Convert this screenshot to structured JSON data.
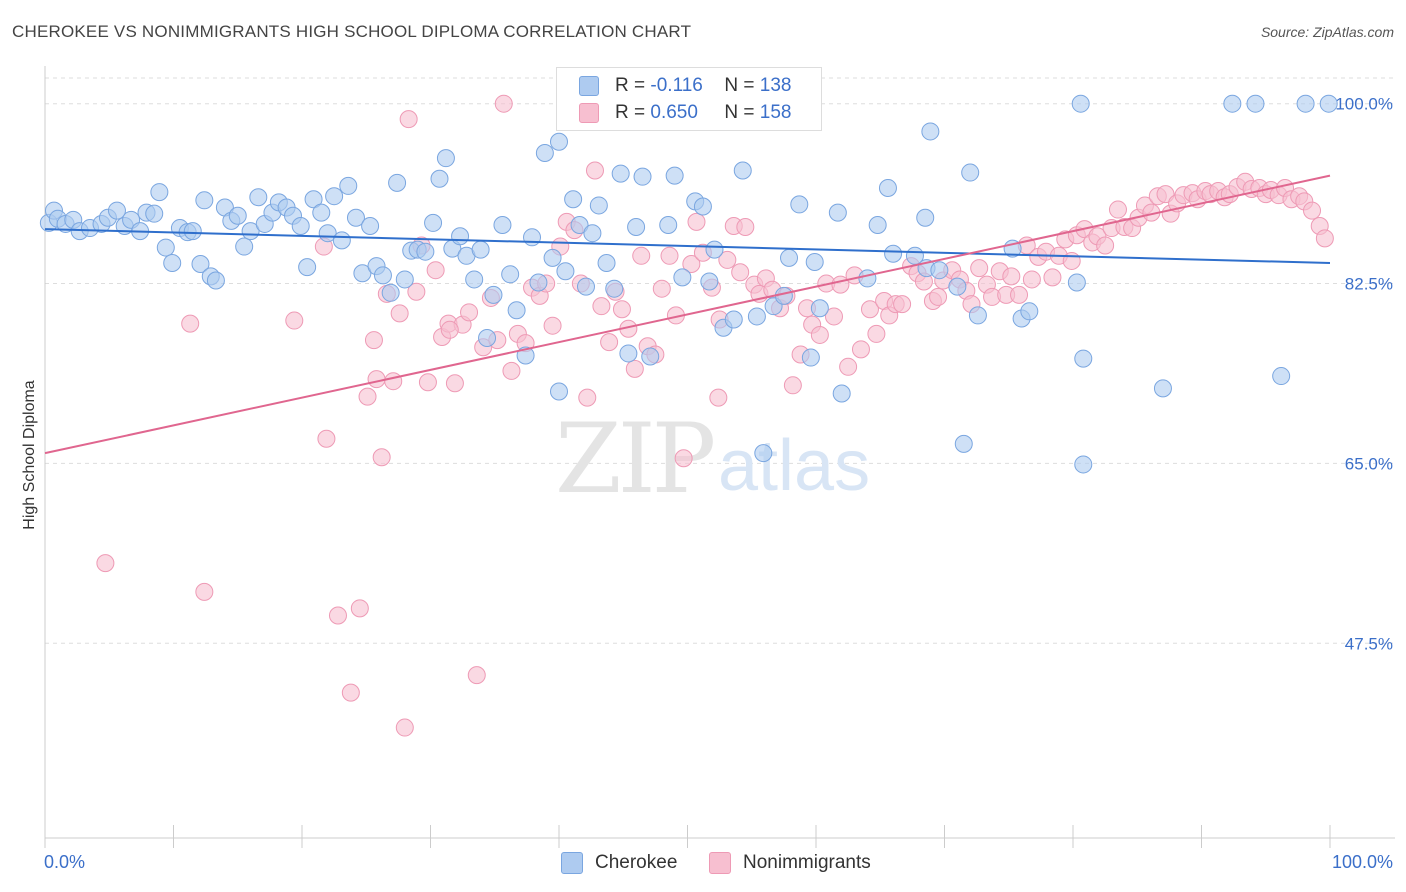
{
  "title": "CHEROKEE VS NONIMMIGRANTS HIGH SCHOOL DIPLOMA CORRELATION CHART",
  "source": "Source: ZipAtlas.com",
  "watermark": {
    "zip": "ZIP",
    "atlas": "atlas"
  },
  "legend": {
    "r_label": "R =",
    "n_label": "N =",
    "rows": [
      {
        "r": "-0.116",
        "n": "138"
      },
      {
        "r": "0.650",
        "n": "158"
      }
    ]
  },
  "colors": {
    "cherokee_fill": "#aecbf0",
    "cherokee_stroke": "#7aa6e0",
    "cherokee_line": "#2f6fcc",
    "nonimm_fill": "#f7bfd0",
    "nonimm_stroke": "#ee9ab5",
    "nonimm_line": "#e0668f",
    "tick_text": "#3b6fc9",
    "grid": "#dddddd"
  },
  "chart_data": {
    "type": "scatter",
    "xlabel": "",
    "ylabel": "High School Diploma",
    "x_tick_labels": [
      "0.0%",
      "100.0%"
    ],
    "y_tick_labels": [
      "100.0%",
      "82.5%",
      "65.0%",
      "47.5%"
    ],
    "y_ticks": [
      100.0,
      82.5,
      65.0,
      47.5
    ],
    "xlim": [
      0,
      100
    ],
    "ylim": [
      30.5,
      102.5
    ],
    "grid": true,
    "legend_position": "top-center",
    "series": [
      {
        "name": "Cherokee",
        "trend": {
          "x0": 0,
          "y0": 87.8,
          "x1": 100,
          "y1": 84.5
        },
        "points": [
          [
            0.3,
            88.4
          ],
          [
            0.7,
            89.6
          ],
          [
            1,
            88.8
          ],
          [
            1.6,
            88.3
          ],
          [
            2.2,
            88.7
          ],
          [
            2.7,
            87.6
          ],
          [
            3.5,
            87.9
          ],
          [
            4.4,
            88.3
          ],
          [
            4.9,
            88.9
          ],
          [
            5.6,
            89.6
          ],
          [
            6.2,
            88.1
          ],
          [
            6.7,
            88.7
          ],
          [
            7.4,
            87.6
          ],
          [
            7.9,
            89.4
          ],
          [
            8.5,
            89.3
          ],
          [
            8.9,
            91.4
          ],
          [
            9.4,
            86.0
          ],
          [
            9.9,
            84.5
          ],
          [
            10.5,
            87.9
          ],
          [
            11.1,
            87.5
          ],
          [
            11.5,
            87.6
          ],
          [
            12.1,
            84.4
          ],
          [
            12.4,
            90.6
          ],
          [
            12.9,
            83.2
          ],
          [
            13.3,
            82.8
          ],
          [
            14,
            89.9
          ],
          [
            14.5,
            88.6
          ],
          [
            15,
            89.1
          ],
          [
            15.5,
            86.1
          ],
          [
            16,
            87.6
          ],
          [
            16.6,
            90.9
          ],
          [
            17.1,
            88.3
          ],
          [
            17.7,
            89.4
          ],
          [
            18.2,
            90.4
          ],
          [
            18.8,
            89.9
          ],
          [
            19.3,
            89.1
          ],
          [
            19.9,
            88.1
          ],
          [
            20.4,
            84.1
          ],
          [
            20.9,
            90.7
          ],
          [
            21.5,
            89.4
          ],
          [
            22,
            87.4
          ],
          [
            22.5,
            91.0
          ],
          [
            23.1,
            86.7
          ],
          [
            23.6,
            92.0
          ],
          [
            24.2,
            88.9
          ],
          [
            24.7,
            83.5
          ],
          [
            25.3,
            88.1
          ],
          [
            25.8,
            84.2
          ],
          [
            26.3,
            83.3
          ],
          [
            26.9,
            81.6
          ],
          [
            27.4,
            92.3
          ],
          [
            28,
            82.9
          ],
          [
            28.5,
            85.7
          ],
          [
            29,
            85.8
          ],
          [
            29.6,
            85.6
          ],
          [
            30.2,
            88.4
          ],
          [
            30.7,
            92.7
          ],
          [
            31.2,
            94.7
          ],
          [
            31.7,
            85.9
          ],
          [
            32.3,
            87.1
          ],
          [
            32.8,
            85.2
          ],
          [
            33.4,
            82.9
          ],
          [
            33.9,
            85.8
          ],
          [
            34.4,
            77.2
          ],
          [
            34.9,
            81.4
          ],
          [
            35.6,
            88.2
          ],
          [
            36.2,
            83.4
          ],
          [
            36.7,
            79.9
          ],
          [
            37.4,
            75.5
          ],
          [
            37.9,
            87.0
          ],
          [
            38.4,
            82.6
          ],
          [
            38.9,
            95.2
          ],
          [
            39.5,
            85.0
          ],
          [
            40.0,
            96.3
          ],
          [
            40.5,
            83.7
          ],
          [
            41.1,
            90.7
          ],
          [
            41.6,
            88.2
          ],
          [
            42.1,
            82.2
          ],
          [
            42.6,
            87.4
          ],
          [
            43.1,
            90.1
          ],
          [
            43.7,
            84.5
          ],
          [
            44.3,
            82.0
          ],
          [
            44.8,
            93.2
          ],
          [
            45.4,
            75.7
          ],
          [
            46.0,
            88.0
          ],
          [
            46.5,
            92.9
          ],
          [
            47.1,
            75.4
          ],
          [
            47.7,
            100.0
          ],
          [
            48.5,
            88.2
          ],
          [
            49.0,
            93.0
          ],
          [
            49.6,
            83.1
          ],
          [
            50.6,
            90.5
          ],
          [
            51.2,
            90.0
          ],
          [
            51.7,
            82.7
          ],
          [
            52.4,
            99.8
          ],
          [
            53.4,
            100.0
          ],
          [
            52.1,
            85.8
          ],
          [
            52.8,
            78.2
          ],
          [
            53.6,
            79.0
          ],
          [
            54.3,
            93.5
          ],
          [
            54.8,
            100.0
          ],
          [
            55.4,
            79.3
          ],
          [
            55.9,
            66.0
          ],
          [
            56.7,
            80.3
          ],
          [
            57.5,
            81.3
          ],
          [
            57.9,
            85.0
          ],
          [
            58.7,
            90.2
          ],
          [
            59.6,
            75.3
          ],
          [
            59.9,
            84.6
          ],
          [
            60.3,
            80.1
          ],
          [
            61.7,
            89.4
          ],
          [
            62.0,
            71.8
          ],
          [
            64.0,
            83.0
          ],
          [
            64.8,
            88.2
          ],
          [
            65.6,
            91.8
          ],
          [
            66.0,
            85.4
          ],
          [
            67.7,
            85.2
          ],
          [
            68.5,
            88.9
          ],
          [
            68.6,
            84.0
          ],
          [
            68.9,
            97.3
          ],
          [
            69.6,
            83.8
          ],
          [
            71.0,
            82.2
          ],
          [
            71.5,
            66.9
          ],
          [
            72.0,
            93.3
          ],
          [
            72.6,
            79.4
          ],
          [
            75.3,
            85.9
          ],
          [
            76.0,
            79.1
          ],
          [
            76.6,
            79.8
          ],
          [
            80.3,
            82.6
          ],
          [
            80.8,
            75.2
          ],
          [
            80.8,
            64.9
          ],
          [
            80.6,
            100.0
          ],
          [
            87.0,
            72.3
          ],
          [
            92.4,
            100.0
          ],
          [
            94.2,
            100.0
          ],
          [
            96.2,
            73.5
          ],
          [
            98.1,
            100.0
          ],
          [
            99.9,
            100.0
          ],
          [
            40.0,
            72.0
          ]
        ]
      },
      {
        "name": "Nonimmigrants",
        "trend": {
          "x0": 0,
          "y0": 66.0,
          "x1": 100,
          "y1": 93.0
        },
        "points": [
          [
            4.7,
            55.3
          ],
          [
            11.3,
            78.6
          ],
          [
            12.4,
            52.5
          ],
          [
            19.4,
            78.9
          ],
          [
            21.7,
            86.1
          ],
          [
            21.9,
            67.4
          ],
          [
            22.8,
            50.2
          ],
          [
            23.8,
            42.7
          ],
          [
            24.5,
            50.9
          ],
          [
            25.1,
            71.5
          ],
          [
            25.6,
            77.0
          ],
          [
            25.8,
            73.2
          ],
          [
            26.2,
            65.6
          ],
          [
            26.6,
            81.5
          ],
          [
            27.1,
            73.0
          ],
          [
            27.6,
            79.6
          ],
          [
            28.0,
            39.3
          ],
          [
            28.3,
            98.5
          ],
          [
            28.9,
            81.7
          ],
          [
            29.3,
            86.2
          ],
          [
            29.8,
            72.9
          ],
          [
            30.4,
            83.8
          ],
          [
            30.9,
            77.3
          ],
          [
            31.4,
            78.6
          ],
          [
            31.9,
            72.8
          ],
          [
            32.5,
            78.5
          ],
          [
            33.0,
            79.7
          ],
          [
            33.6,
            44.4
          ],
          [
            34.1,
            76.3
          ],
          [
            34.7,
            81.1
          ],
          [
            35.2,
            77.0
          ],
          [
            35.7,
            100.0
          ],
          [
            36.3,
            74.0
          ],
          [
            36.8,
            77.6
          ],
          [
            37.4,
            76.7
          ],
          [
            37.9,
            82.1
          ],
          [
            38.5,
            81.3
          ],
          [
            39.0,
            82.5
          ],
          [
            39.5,
            78.4
          ],
          [
            40.1,
            86.1
          ],
          [
            40.6,
            88.5
          ],
          [
            41.2,
            87.7
          ],
          [
            41.7,
            82.5
          ],
          [
            42.2,
            71.4
          ],
          [
            42.8,
            93.5
          ],
          [
            43.3,
            80.3
          ],
          [
            43.9,
            76.8
          ],
          [
            44.4,
            81.7
          ],
          [
            44.9,
            80.0
          ],
          [
            45.4,
            78.1
          ],
          [
            45.9,
            74.2
          ],
          [
            46.4,
            85.2
          ],
          [
            46.9,
            76.4
          ],
          [
            47.5,
            75.6
          ],
          [
            48.0,
            82.0
          ],
          [
            48.6,
            85.2
          ],
          [
            49.1,
            79.4
          ],
          [
            49.7,
            65.5
          ],
          [
            50.3,
            84.4
          ],
          [
            50.7,
            88.5
          ],
          [
            51.2,
            85.5
          ],
          [
            51.9,
            82.1
          ],
          [
            52.4,
            71.4
          ],
          [
            53.1,
            84.8
          ],
          [
            53.6,
            88.1
          ],
          [
            54.1,
            83.6
          ],
          [
            54.5,
            88.0
          ],
          [
            55.2,
            82.4
          ],
          [
            55.6,
            81.5
          ],
          [
            56.1,
            83.0
          ],
          [
            56.6,
            81.9
          ],
          [
            57.2,
            80.1
          ],
          [
            57.7,
            81.3
          ],
          [
            58.2,
            72.6
          ],
          [
            58.8,
            75.6
          ],
          [
            59.3,
            80.1
          ],
          [
            59.7,
            78.5
          ],
          [
            60.3,
            77.5
          ],
          [
            60.8,
            82.5
          ],
          [
            61.4,
            79.3
          ],
          [
            61.9,
            82.4
          ],
          [
            62.5,
            74.4
          ],
          [
            63.0,
            83.3
          ],
          [
            63.5,
            76.1
          ],
          [
            64.2,
            80.0
          ],
          [
            64.7,
            77.6
          ],
          [
            65.3,
            80.8
          ],
          [
            65.7,
            79.4
          ],
          [
            66.2,
            80.5
          ],
          [
            66.7,
            80.5
          ],
          [
            67.4,
            84.2
          ],
          [
            67.9,
            83.5
          ],
          [
            68.4,
            82.7
          ],
          [
            69.1,
            80.8
          ],
          [
            69.5,
            81.2
          ],
          [
            69.9,
            82.8
          ],
          [
            70.6,
            83.8
          ],
          [
            71.2,
            82.9
          ],
          [
            71.7,
            81.8
          ],
          [
            72.1,
            80.5
          ],
          [
            72.7,
            84.0
          ],
          [
            73.3,
            82.4
          ],
          [
            73.7,
            81.2
          ],
          [
            74.3,
            83.7
          ],
          [
            74.8,
            81.4
          ],
          [
            75.2,
            83.2
          ],
          [
            75.8,
            81.4
          ],
          [
            76.4,
            86.2
          ],
          [
            76.8,
            82.9
          ],
          [
            77.3,
            85.1
          ],
          [
            77.9,
            85.6
          ],
          [
            78.4,
            83.1
          ],
          [
            78.9,
            85.2
          ],
          [
            79.4,
            86.8
          ],
          [
            79.9,
            84.7
          ],
          [
            80.3,
            87.2
          ],
          [
            80.9,
            87.8
          ],
          [
            81.5,
            86.5
          ],
          [
            81.9,
            87.1
          ],
          [
            82.5,
            86.2
          ],
          [
            83.0,
            87.9
          ],
          [
            83.5,
            89.7
          ],
          [
            84.0,
            88.0
          ],
          [
            84.6,
            87.9
          ],
          [
            85.1,
            88.9
          ],
          [
            85.6,
            90.1
          ],
          [
            86.1,
            89.4
          ],
          [
            86.6,
            91.0
          ],
          [
            87.2,
            91.2
          ],
          [
            87.6,
            89.3
          ],
          [
            88.1,
            90.3
          ],
          [
            88.6,
            91.1
          ],
          [
            89.3,
            91.3
          ],
          [
            89.7,
            90.7
          ],
          [
            90.3,
            91.5
          ],
          [
            90.7,
            91.2
          ],
          [
            91.3,
            91.5
          ],
          [
            91.8,
            90.9
          ],
          [
            92.2,
            91.2
          ],
          [
            92.8,
            91.9
          ],
          [
            93.4,
            92.4
          ],
          [
            93.9,
            91.7
          ],
          [
            94.5,
            91.8
          ],
          [
            95.0,
            91.2
          ],
          [
            95.4,
            91.6
          ],
          [
            96.0,
            91.1
          ],
          [
            96.5,
            91.8
          ],
          [
            97.0,
            90.7
          ],
          [
            97.6,
            91.0
          ],
          [
            98.0,
            90.5
          ],
          [
            98.6,
            89.6
          ],
          [
            99.2,
            88.1
          ],
          [
            99.6,
            86.9
          ],
          [
            52.5,
            79.0
          ],
          [
            31.5,
            78.0
          ]
        ]
      }
    ]
  }
}
